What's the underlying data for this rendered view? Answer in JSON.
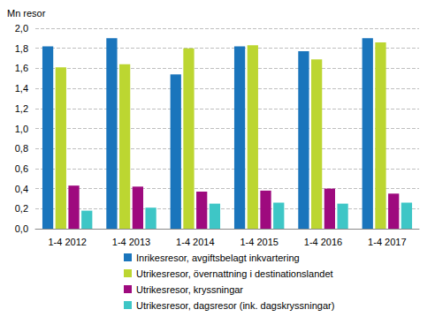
{
  "chart_data": {
    "type": "bar",
    "y_label": "Mn resor",
    "categories": [
      "1-4 2012",
      "1-4 2013",
      "1-4 2014",
      "1-4 2015",
      "1-4 2016",
      "1-4 2017"
    ],
    "series": [
      {
        "name": "Inrikesresor, avgiftsbelagt inkvartering",
        "color": "#1a75bc",
        "values": [
          1.82,
          1.9,
          1.54,
          1.82,
          1.77,
          1.9
        ]
      },
      {
        "name": "Utrikesresor, övernattning i destinationslandet",
        "color": "#bcd631",
        "values": [
          1.61,
          1.64,
          1.8,
          1.83,
          1.69,
          1.86
        ]
      },
      {
        "name": "Utrikesresor, kryssningar",
        "color": "#9e0a7e",
        "values": [
          0.43,
          0.42,
          0.37,
          0.38,
          0.4,
          0.35
        ]
      },
      {
        "name": "Utrikesresor, dagsresor (ink. dagskryssningar)",
        "color": "#3ec6c6",
        "values": [
          0.18,
          0.21,
          0.25,
          0.26,
          0.25,
          0.26
        ]
      }
    ],
    "ylim": [
      0,
      2
    ],
    "yticks": [
      {
        "value": 0,
        "label": "0,0"
      },
      {
        "value": 0.2,
        "label": "0,2"
      },
      {
        "value": 0.4,
        "label": "0,4"
      },
      {
        "value": 0.6,
        "label": "0,6"
      },
      {
        "value": 0.8,
        "label": "0,8"
      },
      {
        "value": 1.0,
        "label": "1,0"
      },
      {
        "value": 1.2,
        "label": "1,2"
      },
      {
        "value": 1.4,
        "label": "1,4"
      },
      {
        "value": 1.6,
        "label": "1,6"
      },
      {
        "value": 1.8,
        "label": "1,8"
      },
      {
        "value": 2.0,
        "label": "2,0"
      }
    ],
    "grid": true,
    "legend": "bottom"
  }
}
